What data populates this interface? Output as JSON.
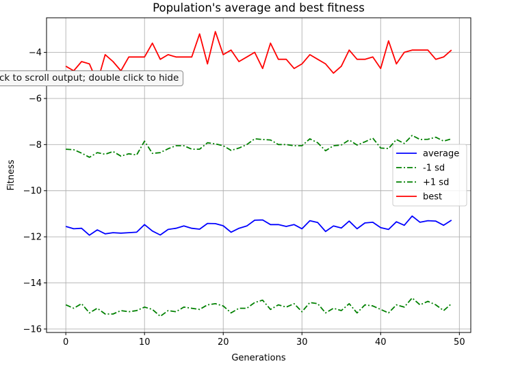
{
  "tooltip": {
    "text": "ck to scroll output; double click to hide"
  },
  "chart_data": {
    "type": "line",
    "title": "Population's average and best fitness",
    "xlabel": "Generations",
    "ylabel": "Fitness",
    "xlim": [
      -2.45,
      51.45
    ],
    "ylim": [
      -16.15,
      -2.5
    ],
    "xticks": [
      0,
      10,
      20,
      30,
      40,
      50
    ],
    "xtick_labels": [
      "0",
      "10",
      "20",
      "30",
      "40",
      "50"
    ],
    "yticks": [
      -16,
      -14,
      -12,
      -10,
      -8,
      -6,
      -4
    ],
    "ytick_labels": [
      "−16",
      "−14",
      "−12",
      "−10",
      "−8",
      "−6",
      "−4"
    ],
    "grid": true,
    "legend_position": "center-right",
    "x": [
      0,
      1,
      2,
      3,
      4,
      5,
      6,
      7,
      8,
      9,
      10,
      11,
      12,
      13,
      14,
      15,
      16,
      17,
      18,
      19,
      20,
      21,
      22,
      23,
      24,
      25,
      26,
      27,
      28,
      29,
      30,
      31,
      32,
      33,
      34,
      35,
      36,
      37,
      38,
      39,
      40,
      41,
      42,
      43,
      44,
      45,
      46,
      47,
      48,
      49
    ],
    "series": [
      {
        "name": "average",
        "color": "#0000ff",
        "style": "solid",
        "values": [
          -11.55,
          -11.65,
          -11.63,
          -11.93,
          -11.7,
          -11.87,
          -11.82,
          -11.84,
          -11.82,
          -11.8,
          -11.47,
          -11.75,
          -11.92,
          -11.68,
          -11.63,
          -11.53,
          -11.63,
          -11.67,
          -11.42,
          -11.43,
          -11.52,
          -11.8,
          -11.63,
          -11.53,
          -11.28,
          -11.27,
          -11.47,
          -11.47,
          -11.55,
          -11.47,
          -11.65,
          -11.3,
          -11.38,
          -11.77,
          -11.53,
          -11.62,
          -11.32,
          -11.65,
          -11.4,
          -11.37,
          -11.6,
          -11.68,
          -11.35,
          -11.5,
          -11.1,
          -11.37,
          -11.3,
          -11.32,
          -11.5,
          -11.28
        ]
      },
      {
        "name": "-1 sd",
        "color": "#008000",
        "style": "dashdot",
        "values": [
          -14.95,
          -15.1,
          -14.9,
          -15.3,
          -15.1,
          -15.35,
          -15.35,
          -15.2,
          -15.25,
          -15.2,
          -15.05,
          -15.15,
          -15.45,
          -15.2,
          -15.25,
          -15.05,
          -15.1,
          -15.15,
          -14.95,
          -14.9,
          -15.0,
          -15.3,
          -15.1,
          -15.1,
          -14.85,
          -14.75,
          -15.15,
          -14.95,
          -15.05,
          -14.9,
          -15.25,
          -14.85,
          -14.9,
          -15.3,
          -15.1,
          -15.2,
          -14.9,
          -15.3,
          -14.95,
          -15.0,
          -15.15,
          -15.3,
          -14.95,
          -15.05,
          -14.65,
          -14.95,
          -14.8,
          -14.95,
          -15.2,
          -14.9
        ]
      },
      {
        "name": "+1 sd",
        "color": "#008000",
        "style": "dashdot",
        "values": [
          -8.2,
          -8.22,
          -8.37,
          -8.55,
          -8.35,
          -8.42,
          -8.3,
          -8.5,
          -8.4,
          -8.45,
          -7.85,
          -8.38,
          -8.35,
          -8.18,
          -8.05,
          -8.05,
          -8.2,
          -8.2,
          -7.92,
          -7.97,
          -8.05,
          -8.25,
          -8.15,
          -8.0,
          -7.75,
          -7.78,
          -7.8,
          -8.0,
          -8.0,
          -8.05,
          -8.05,
          -7.75,
          -7.92,
          -8.27,
          -8.05,
          -8.02,
          -7.8,
          -8.02,
          -7.88,
          -7.72,
          -8.15,
          -8.17,
          -7.78,
          -7.95,
          -7.6,
          -7.78,
          -7.77,
          -7.68,
          -7.85,
          -7.75
        ]
      },
      {
        "name": "best",
        "color": "#ff0000",
        "style": "solid",
        "values": [
          -4.6,
          -4.8,
          -4.4,
          -4.5,
          -5.3,
          -4.1,
          -4.4,
          -4.8,
          -4.2,
          -4.2,
          -4.2,
          -3.6,
          -4.3,
          -4.1,
          -4.2,
          -4.2,
          -4.2,
          -3.2,
          -4.5,
          -3.1,
          -4.1,
          -3.9,
          -4.4,
          -4.2,
          -4.0,
          -4.7,
          -3.6,
          -4.3,
          -4.3,
          -4.7,
          -4.5,
          -4.1,
          -4.3,
          -4.5,
          -4.9,
          -4.6,
          -3.9,
          -4.3,
          -4.3,
          -4.2,
          -4.7,
          -3.5,
          -4.5,
          -4.0,
          -3.9,
          -3.9,
          -3.9,
          -4.3,
          -4.2,
          -3.9
        ]
      }
    ]
  }
}
